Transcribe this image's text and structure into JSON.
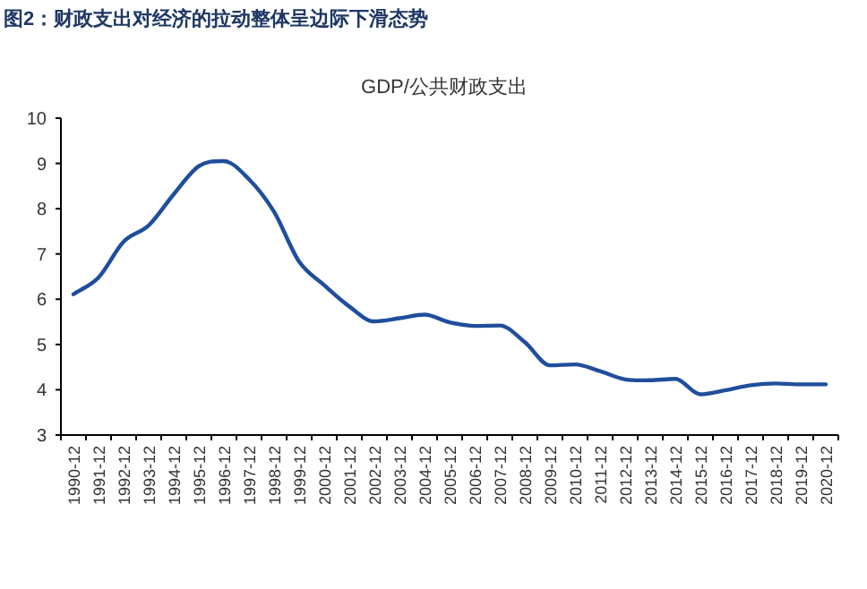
{
  "chart_data": {
    "type": "line",
    "title": "图2：财政支出对经济的拉动整体呈边际下滑态势",
    "subtitle": "GDP/公共财政支出",
    "categories": [
      "1990-12",
      "1991-12",
      "1992-12",
      "1993-12",
      "1994-12",
      "1995-12",
      "1996-12",
      "1997-12",
      "1998-12",
      "1999-12",
      "2000-12",
      "2001-12",
      "2002-12",
      "2003-12",
      "2004-12",
      "2005-12",
      "2006-12",
      "2007-12",
      "2008-12",
      "2009-12",
      "2010-12",
      "2011-12",
      "2012-12",
      "2013-12",
      "2014-12",
      "2015-12",
      "2016-12",
      "2017-12",
      "2018-12",
      "2019-12",
      "2020-12"
    ],
    "series": [
      {
        "color": "#1f4e9c",
        "values": [
          6.11,
          6.48,
          7.27,
          7.63,
          8.32,
          8.94,
          9.05,
          8.65,
          7.93,
          6.83,
          6.31,
          5.84,
          5.51,
          5.58,
          5.66,
          5.49,
          5.41,
          5.42,
          5.05,
          4.54,
          4.56,
          4.41,
          4.23,
          4.21,
          4.24,
          3.9,
          3.99,
          4.1,
          4.14,
          4.12,
          4.12
        ]
      }
    ],
    "ylim": [
      3,
      10
    ],
    "yticks": [
      3,
      4,
      5,
      6,
      7,
      8,
      9,
      10
    ],
    "grid": false,
    "marker": "none",
    "line_style": "solid"
  }
}
